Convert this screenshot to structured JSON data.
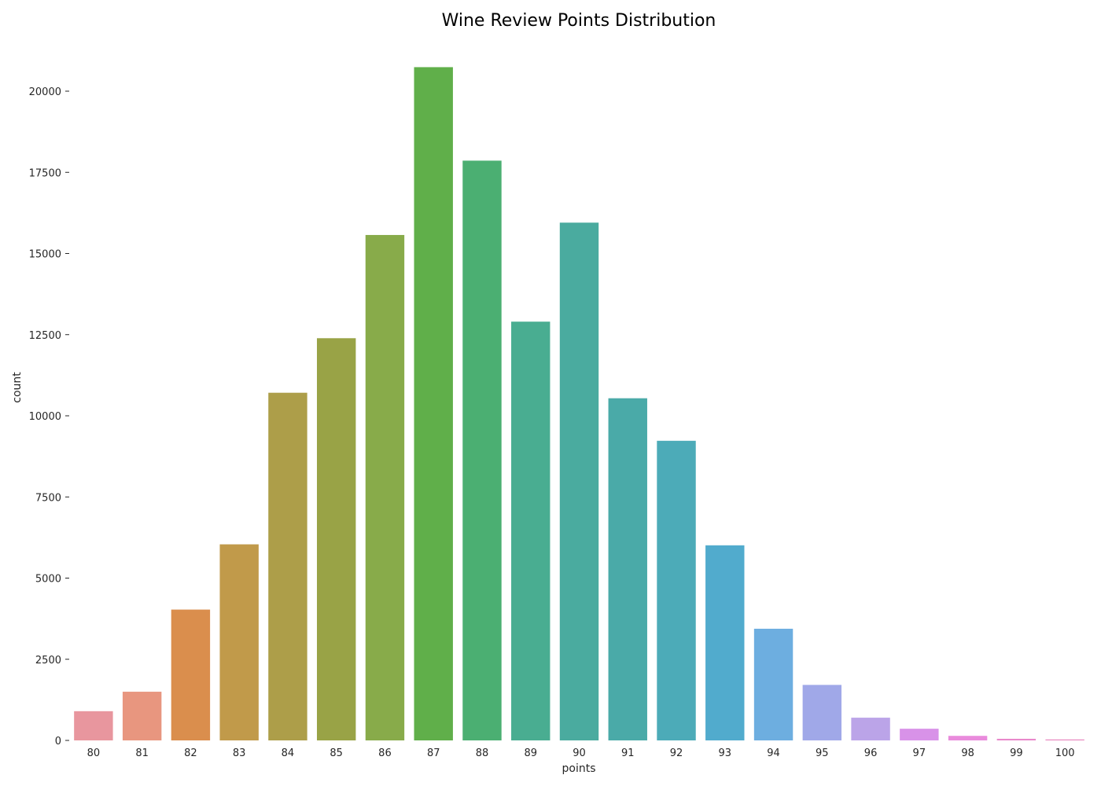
{
  "chart_data": {
    "type": "bar",
    "title": "Wine Review Points Distribution",
    "xlabel": "points",
    "ylabel": "count",
    "categories": [
      "80",
      "81",
      "82",
      "83",
      "84",
      "85",
      "86",
      "87",
      "88",
      "89",
      "90",
      "91",
      "92",
      "93",
      "94",
      "95",
      "96",
      "97",
      "98",
      "99",
      "100"
    ],
    "values": [
      900,
      1500,
      4030,
      6040,
      10710,
      12390,
      15570,
      20740,
      17860,
      12900,
      15950,
      10540,
      9230,
      6010,
      3440,
      1710,
      700,
      360,
      140,
      50,
      30
    ],
    "colors": [
      "#e8969e",
      "#e8967f",
      "#da8e4d",
      "#c19a4a",
      "#ad9e49",
      "#99a346",
      "#88ab4a",
      "#60af4a",
      "#4baf72",
      "#49ad91",
      "#4aab9f",
      "#4aaaa8",
      "#4cabb8",
      "#51abcd",
      "#6daee0",
      "#a0a8e8",
      "#bba4e8",
      "#d892e8",
      "#e98bdc",
      "#e988cb",
      "#e98ac0"
    ],
    "ylim": [
      0,
      21500
    ],
    "yticks": [
      0,
      2500,
      5000,
      7500,
      10000,
      12500,
      15000,
      17500,
      20000
    ],
    "grid": false,
    "legend": "none"
  }
}
